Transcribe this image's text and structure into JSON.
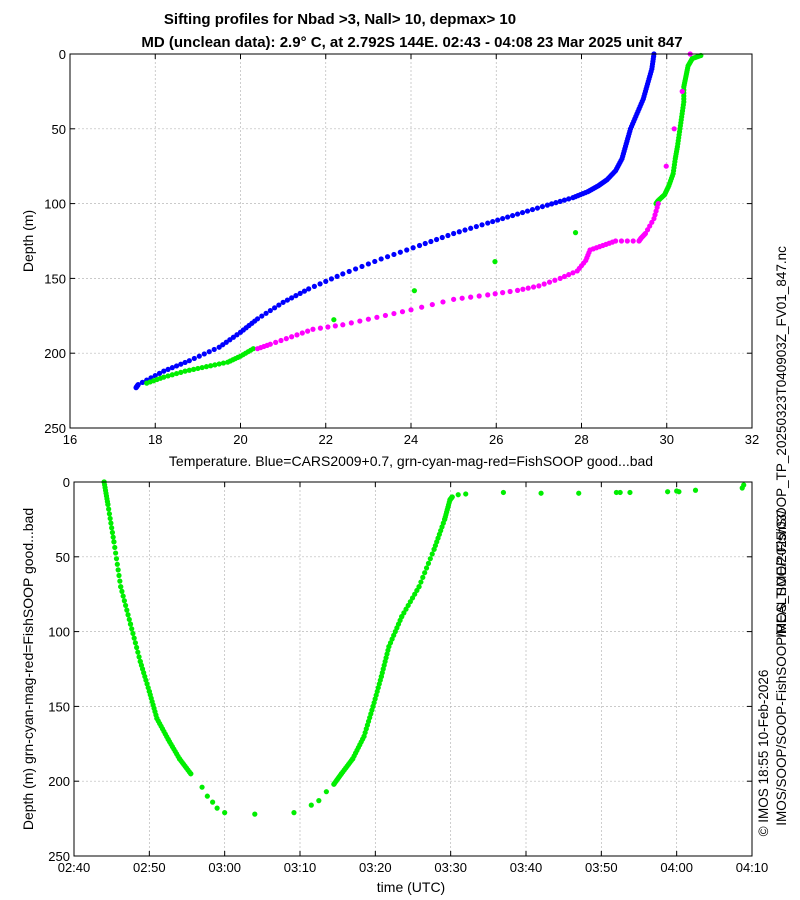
{
  "titles": {
    "line1": "Sifting profiles for Nbad >3, Nall> 10, depmax> 10",
    "line2": "MD (unclean data): 2.9° C, at 2.792S 144E. 02:43 - 04:08 23 Mar 2025 unit 847"
  },
  "side_text": {
    "filename": "IMOS_SOOP-FishSOOP_TP_20250323T040903Z_FV01_847.nc",
    "credit_line1": "© IMOS 18:55 10-Feb-2026",
    "credit_line2": "IMOS/SOOP/SOOP-FishSOOP/REALTIME/2025/03/"
  },
  "colors": {
    "cars": "#0000ff",
    "good": "#00ee00",
    "bad": "#ff00ff",
    "grid": "#b8b8b8"
  },
  "chart_data": [
    {
      "type": "scatter",
      "title": "Sifting profiles for Nbad >3, Nall> 10, depmax> 10",
      "xlabel": "Temperature. Blue=CARS2009+0.7, grn-cyan-mag-red=FishSOOP good...bad",
      "ylabel": "Depth (m)",
      "xlim": [
        16,
        32
      ],
      "ylim": [
        250,
        0
      ],
      "grid": true,
      "xticks": [
        "16",
        "18",
        "20",
        "22",
        "24",
        "26",
        "28",
        "30",
        "32"
      ],
      "xtick_values": [
        16,
        18,
        20,
        22,
        24,
        26,
        28,
        30,
        32
      ],
      "yticks": [
        "0",
        "50",
        "100",
        "150",
        "200",
        "250"
      ],
      "ytick_values": [
        0,
        50,
        100,
        150,
        200,
        250
      ],
      "series": [
        {
          "name": "CARS2009+0.7",
          "color": "#0000ff",
          "points": [
            [
              29.7,
              0
            ],
            [
              29.65,
              10
            ],
            [
              29.55,
              20
            ],
            [
              29.45,
              30
            ],
            [
              29.3,
              40
            ],
            [
              29.15,
              50
            ],
            [
              29.05,
              60
            ],
            [
              28.95,
              70
            ],
            [
              28.8,
              78
            ],
            [
              28.6,
              84
            ],
            [
              28.4,
              88
            ],
            [
              28.15,
              92
            ],
            [
              27.8,
              96
            ],
            [
              27.2,
              101
            ],
            [
              26.5,
              107
            ],
            [
              25.8,
              113
            ],
            [
              25.0,
              120
            ],
            [
              24.2,
              128
            ],
            [
              23.3,
              137
            ],
            [
              22.4,
              147
            ],
            [
              21.6,
              157
            ],
            [
              21.0,
              166
            ],
            [
              20.4,
              177
            ],
            [
              20.0,
              186
            ],
            [
              19.5,
              196
            ],
            [
              18.8,
              205
            ],
            [
              18.2,
              212
            ],
            [
              17.6,
              221
            ],
            [
              17.55,
              223
            ]
          ]
        },
        {
          "name": "FishSOOP good",
          "color": "#00ee00",
          "points": [
            [
              30.8,
              1
            ],
            [
              30.6,
              3
            ],
            [
              30.5,
              8
            ],
            [
              30.45,
              15
            ],
            [
              30.4,
              22
            ],
            [
              30.4,
              32
            ],
            [
              30.35,
              42
            ],
            [
              30.3,
              52
            ],
            [
              30.25,
              62
            ],
            [
              30.2,
              70
            ],
            [
              30.15,
              80
            ],
            [
              30.05,
              88
            ],
            [
              29.95,
              94
            ],
            [
              29.8,
              98
            ],
            [
              29.75,
              100
            ],
            [
              20.3,
              197
            ],
            [
              20.0,
              202
            ],
            [
              19.7,
              206
            ],
            [
              19.2,
              209
            ],
            [
              18.7,
              212
            ],
            [
              18.2,
              216
            ],
            [
              17.8,
              220
            ]
          ]
        },
        {
          "name": "FishSOOP bad",
          "color": "#ff00ff",
          "points": [
            [
              30.55,
              0
            ],
            [
              29.8,
              100
            ],
            [
              29.7,
              110
            ],
            [
              29.5,
              120
            ],
            [
              29.4,
              123
            ],
            [
              29.35,
              125
            ],
            [
              28.8,
              125
            ],
            [
              28.5,
              128
            ],
            [
              28.2,
              131
            ],
            [
              28.1,
              138
            ],
            [
              27.9,
              145
            ],
            [
              27.5,
              150
            ],
            [
              27.0,
              155
            ],
            [
              26.5,
              158
            ],
            [
              25.8,
              161
            ],
            [
              25.0,
              164
            ],
            [
              24.0,
              171
            ],
            [
              23.2,
              176
            ],
            [
              22.4,
              181
            ],
            [
              21.7,
              184
            ],
            [
              21.2,
              189
            ],
            [
              20.7,
              194
            ],
            [
              20.4,
              197
            ]
          ]
        }
      ]
    },
    {
      "type": "scatter",
      "xlabel": "time (UTC)",
      "ylabel": "Depth (m) grn-cyan-mag-red=FishSOOP good...bad",
      "ylim": [
        250,
        0
      ],
      "xlim_minutes": [
        160,
        250
      ],
      "grid": true,
      "xticks": [
        "02:40",
        "02:50",
        "03:00",
        "03:10",
        "03:20",
        "03:30",
        "03:40",
        "03:50",
        "04:00",
        "04:10"
      ],
      "xtick_minutes": [
        160,
        170,
        180,
        190,
        200,
        210,
        220,
        230,
        240,
        250
      ],
      "yticks": [
        "0",
        "50",
        "100",
        "150",
        "200",
        "250"
      ],
      "ytick_values": [
        0,
        50,
        100,
        150,
        200,
        250
      ],
      "series": [
        {
          "name": "FishSOOP good",
          "color": "#00ee00",
          "points": [
            [
              164.0,
              0
            ],
            [
              164.5,
              15
            ],
            [
              165.3,
              40
            ],
            [
              166.2,
              70
            ],
            [
              167.5,
              95
            ],
            [
              168.8,
              120
            ],
            [
              170.0,
              140
            ],
            [
              171.0,
              158
            ],
            [
              172.5,
              172
            ],
            [
              174.0,
              185
            ],
            [
              175.5,
              195
            ],
            [
              177.0,
              204
            ],
            [
              177.7,
              210
            ],
            [
              178.4,
              214
            ],
            [
              179.0,
              218
            ],
            [
              180.0,
              221
            ],
            [
              184.0,
              222
            ],
            [
              189.2,
              221
            ],
            [
              191.5,
              216
            ],
            [
              192.5,
              213
            ],
            [
              193.5,
              207
            ],
            [
              194.5,
              202
            ],
            [
              195.5,
              195
            ],
            [
              197.0,
              185
            ],
            [
              198.5,
              170
            ],
            [
              199.7,
              150
            ],
            [
              200.8,
              130
            ],
            [
              201.8,
              110
            ],
            [
              203.5,
              90
            ],
            [
              205.8,
              70
            ],
            [
              207.8,
              45
            ],
            [
              209.2,
              25
            ],
            [
              209.9,
              12
            ],
            [
              210.2,
              10
            ],
            [
              211.0,
              8.5
            ],
            [
              212.0,
              8
            ],
            [
              217.0,
              7
            ],
            [
              222.0,
              7.5
            ],
            [
              227.0,
              7.5
            ],
            [
              232.0,
              7
            ],
            [
              232.5,
              7
            ],
            [
              233.8,
              7
            ],
            [
              238.8,
              6.5
            ],
            [
              240.0,
              6
            ],
            [
              240.3,
              6.5
            ],
            [
              242.5,
              5.5
            ],
            [
              248.7,
              4
            ],
            [
              248.9,
              2
            ]
          ]
        }
      ]
    }
  ]
}
